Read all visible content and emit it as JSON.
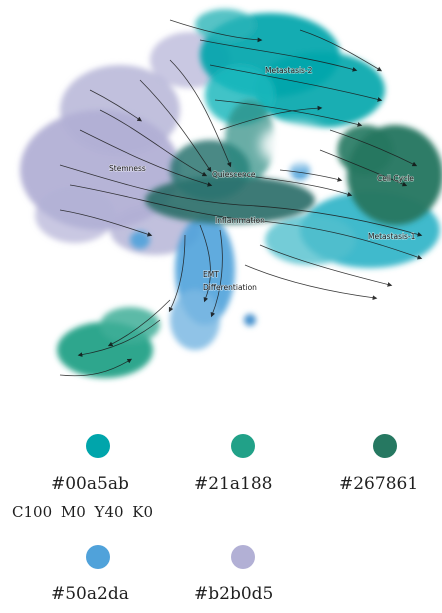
{
  "figure": {
    "labels": {
      "metastasis2": "Metastasis-2",
      "stemness": "Stemness",
      "quiescence": "Quiescence",
      "cell_cycle": "Cell Cycle",
      "inflammation": "Inflammation",
      "metastasis1": "Metastasis-1",
      "emt": "EMT",
      "differentiation": "Differentiation"
    }
  },
  "palette": {
    "swatches": [
      {
        "hex_label": "#00a5ab",
        "color": "#00a5ab",
        "cmyk": "C100  M0  Y40  K0"
      },
      {
        "hex_label": "#21a188",
        "color": "#21a188"
      },
      {
        "hex_label": "#267861",
        "color": "#267861"
      },
      {
        "hex_label": "#50a2da",
        "color": "#50a2da"
      },
      {
        "hex_label": "#b2b0d5",
        "color": "#b2b0d5"
      }
    ]
  }
}
